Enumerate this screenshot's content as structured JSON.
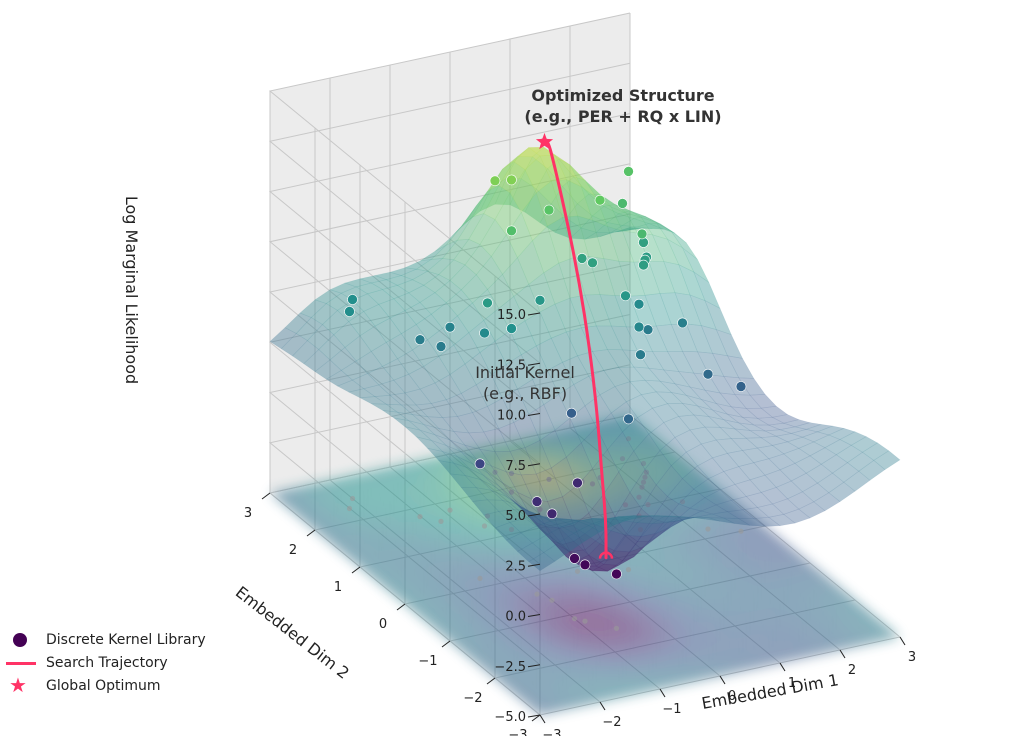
{
  "chart_data": {
    "type": "surface3d",
    "zlabel": "Log Marginal Likelihood",
    "xlabel": "Embedded Dim 1",
    "ylabel": "Embedded Dim 2",
    "zlim": [
      -5.0,
      15.0
    ],
    "xlim": [
      -3,
      3
    ],
    "ylim": [
      -3,
      3
    ],
    "z_ticks": [
      {
        "v": -5.0,
        "label": "−5.0"
      },
      {
        "v": -2.5,
        "label": "−2.5"
      },
      {
        "v": 0.0,
        "label": "0.0"
      },
      {
        "v": 2.5,
        "label": "2.5"
      },
      {
        "v": 5.0,
        "label": "5.0"
      },
      {
        "v": 7.5,
        "label": "7.5"
      },
      {
        "v": 10.0,
        "label": "10.0"
      },
      {
        "v": 12.5,
        "label": "12.5"
      },
      {
        "v": 15.0,
        "label": "15.0"
      }
    ],
    "x_ticks": [
      {
        "v": -3,
        "label": "−3"
      },
      {
        "v": -2,
        "label": "−2"
      },
      {
        "v": -1,
        "label": "−1"
      },
      {
        "v": 0,
        "label": "0"
      },
      {
        "v": 1,
        "label": "1"
      },
      {
        "v": 2,
        "label": "2"
      },
      {
        "v": 3,
        "label": "3"
      }
    ],
    "y_ticks": [
      {
        "v": -3,
        "label": "−3"
      },
      {
        "v": -2,
        "label": "−2"
      },
      {
        "v": -1,
        "label": "−1"
      },
      {
        "v": 0,
        "label": "0"
      },
      {
        "v": 1,
        "label": "1"
      },
      {
        "v": 2,
        "label": "2"
      },
      {
        "v": 3,
        "label": "3"
      }
    ],
    "annotations": {
      "optimum_line1": "Optimized Structure",
      "optimum_line2": "(e.g., PER + RQ x LIN)",
      "start_line1": "Initial Kernel",
      "start_line2": "(e.g., RBF)"
    },
    "legend": [
      {
        "label": "Discrete Kernel Library",
        "marker": "circle"
      },
      {
        "label": "Search Trajectory",
        "marker": "line"
      },
      {
        "label": "Global Optimum",
        "marker": "star"
      }
    ],
    "colors": {
      "trajectory": "#ff3366",
      "colormap": [
        "#440154",
        "#3b528b",
        "#21918c",
        "#5ec962",
        "#fde725"
      ],
      "grid": "#c8c8c8",
      "pane": "#f2f2f2"
    },
    "kernel_points": [
      {
        "x": -2.2,
        "y": 2.3,
        "z": 4.8
      },
      {
        "x": -2.0,
        "y": 2.5,
        "z": 4.9
      },
      {
        "x": -1.4,
        "y": 1.8,
        "z": 3.8
      },
      {
        "x": -1.2,
        "y": 1.6,
        "z": 3.7
      },
      {
        "x": -0.9,
        "y": 1.8,
        "z": 4.1
      },
      {
        "x": -0.7,
        "y": 1.3,
        "z": 4.6
      },
      {
        "x": -0.5,
        "y": 1.5,
        "z": 5.6
      },
      {
        "x": -0.4,
        "y": 1.1,
        "z": 5.0
      },
      {
        "x": -1.6,
        "y": 0.2,
        "z": 0.7
      },
      {
        "x": -1.1,
        "y": -0.4,
        "z": -0.4
      },
      {
        "x": -1.0,
        "y": -0.6,
        "z": -0.7
      },
      {
        "x": -1.0,
        "y": -1.1,
        "z": -2.0
      },
      {
        "x": -0.9,
        "y": -1.2,
        "z": -2.2
      },
      {
        "x": -0.6,
        "y": -1.5,
        "z": -2.3
      },
      {
        "x": -0.2,
        "y": -0.1,
        "z": -0.6
      },
      {
        "x": 0.0,
        "y": 0.3,
        "z": 2.0
      },
      {
        "x": 0.3,
        "y": 1.4,
        "z": 5.4
      },
      {
        "x": 0.2,
        "y": 1.9,
        "z": 8.0
      },
      {
        "x": 0.3,
        "y": 2.4,
        "z": 9.5
      },
      {
        "x": 0.5,
        "y": 2.3,
        "z": 9.6
      },
      {
        "x": 0.9,
        "y": 2.0,
        "z": 8.4
      },
      {
        "x": 1.3,
        "y": 1.8,
        "z": 6.1
      },
      {
        "x": 1.4,
        "y": 1.7,
        "z": 6.0
      },
      {
        "x": 0.5,
        "y": -0.3,
        "z": 2.5
      },
      {
        "x": 1.3,
        "y": 0.5,
        "z": 3.7
      },
      {
        "x": 1.5,
        "y": 0.8,
        "z": 4.4
      },
      {
        "x": 1.5,
        "y": 1.1,
        "z": 5.4
      },
      {
        "x": 1.8,
        "y": 1.0,
        "z": 3.7
      },
      {
        "x": 1.8,
        "y": 1.2,
        "z": 4.6
      },
      {
        "x": 1.6,
        "y": 1.8,
        "z": 8.8
      },
      {
        "x": 2.0,
        "y": 1.4,
        "z": 7.6
      },
      {
        "x": 2.1,
        "y": 1.5,
        "z": 5.8
      },
      {
        "x": 2.2,
        "y": 1.6,
        "z": 5.8
      },
      {
        "x": 2.3,
        "y": 1.7,
        "z": 5.7
      },
      {
        "x": 2.4,
        "y": 1.9,
        "z": 6.0
      },
      {
        "x": 2.2,
        "y": 2.1,
        "z": 7.7
      },
      {
        "x": 2.6,
        "y": 2.5,
        "z": 8.3
      },
      {
        "x": 2.3,
        "y": 0.9,
        "z": 3.9
      },
      {
        "x": 2.2,
        "y": 0.2,
        "z": 2.7
      },
      {
        "x": 2.6,
        "y": 0.0,
        "z": 2.2
      }
    ],
    "trajectory": [
      {
        "x": -0.7,
        "y": -1.4,
        "z": -1.6
      },
      {
        "x": -0.4,
        "y": -1.0,
        "z": -0.8
      },
      {
        "x": -0.1,
        "y": -0.5,
        "z": 0.7
      },
      {
        "x": 0.2,
        "y": 0.0,
        "z": 2.5
      },
      {
        "x": 0.45,
        "y": 0.5,
        "z": 4.6
      },
      {
        "x": 0.65,
        "y": 1.0,
        "z": 6.9
      },
      {
        "x": 0.8,
        "y": 1.5,
        "z": 9.2
      },
      {
        "x": 0.9,
        "y": 1.9,
        "z": 11.0
      },
      {
        "x": 0.95,
        "y": 2.1,
        "z": 11.7
      },
      {
        "x": 0.9,
        "y": 2.15,
        "z": 11.6
      }
    ],
    "global_optimum": {
      "x": 0.9,
      "y": 2.1,
      "z": 11.6
    }
  }
}
